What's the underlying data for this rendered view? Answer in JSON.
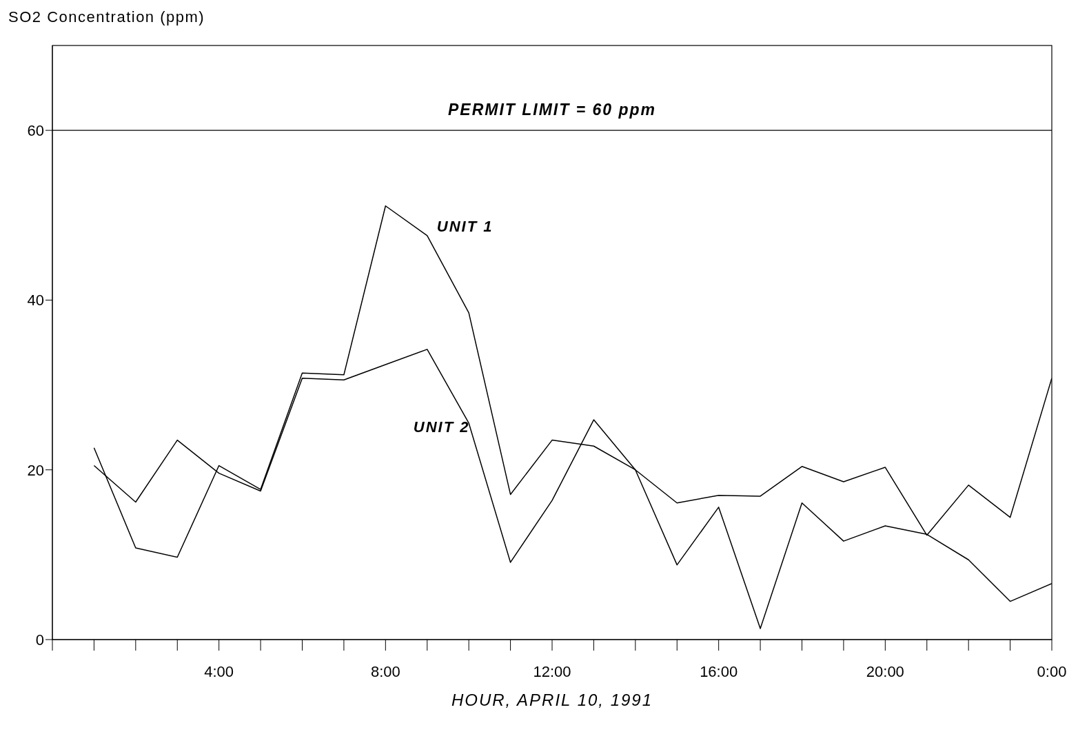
{
  "chart_data": {
    "type": "line",
    "ylabel": "SO2 Concentration (ppm)",
    "xlabel": "HOUR, APRIL 10, 1991",
    "x": [
      1,
      2,
      3,
      4,
      5,
      6,
      7,
      8,
      9,
      10,
      11,
      12,
      13,
      14,
      15,
      16,
      17,
      18,
      19,
      20,
      21,
      22,
      23,
      24
    ],
    "series": [
      {
        "name": "UNIT 1",
        "color": "#000000",
        "values": [
          22.6,
          10.8,
          9.7,
          20.5,
          17.7,
          31.4,
          31.2,
          51.1,
          47.6,
          38.5,
          17.1,
          23.5,
          22.8,
          20.0,
          16.1,
          17.0,
          16.9,
          20.4,
          18.6,
          20.3,
          12.3,
          18.2,
          14.4,
          30.8
        ]
      },
      {
        "name": "UNIT 2",
        "color": "#000000",
        "values": [
          20.5,
          16.2,
          23.5,
          19.6,
          17.5,
          30.8,
          30.6,
          32.4,
          34.2,
          25.5,
          9.1,
          16.4,
          25.9,
          20.0,
          8.8,
          15.6,
          1.3,
          16.1,
          11.6,
          13.4,
          12.4,
          9.4,
          4.5,
          6.6
        ]
      }
    ],
    "xlim": [
      0,
      24
    ],
    "xticks": [
      {
        "value": 0,
        "label": null
      },
      {
        "value": 1,
        "label": null
      },
      {
        "value": 2,
        "label": null
      },
      {
        "value": 3,
        "label": null
      },
      {
        "value": 4,
        "label": "4:00"
      },
      {
        "value": 5,
        "label": null
      },
      {
        "value": 6,
        "label": null
      },
      {
        "value": 7,
        "label": null
      },
      {
        "value": 8,
        "label": "8:00"
      },
      {
        "value": 9,
        "label": null
      },
      {
        "value": 10,
        "label": null
      },
      {
        "value": 11,
        "label": null
      },
      {
        "value": 12,
        "label": "12:00"
      },
      {
        "value": 13,
        "label": null
      },
      {
        "value": 14,
        "label": null
      },
      {
        "value": 15,
        "label": null
      },
      {
        "value": 16,
        "label": "16:00"
      },
      {
        "value": 17,
        "label": null
      },
      {
        "value": 18,
        "label": null
      },
      {
        "value": 19,
        "label": null
      },
      {
        "value": 20,
        "label": "20:00"
      },
      {
        "value": 21,
        "label": null
      },
      {
        "value": 22,
        "label": null
      },
      {
        "value": 23,
        "label": null
      },
      {
        "value": 24,
        "label": "0:00"
      }
    ],
    "ylim": [
      0,
      70
    ],
    "yticks": [
      0,
      20,
      40,
      60
    ],
    "ref_lines": [
      {
        "axis": "y",
        "value": 60,
        "label": "PERMIT LIMIT = 60 ppm",
        "color": "#000000"
      }
    ],
    "marker": "none",
    "line_style": "solid"
  }
}
